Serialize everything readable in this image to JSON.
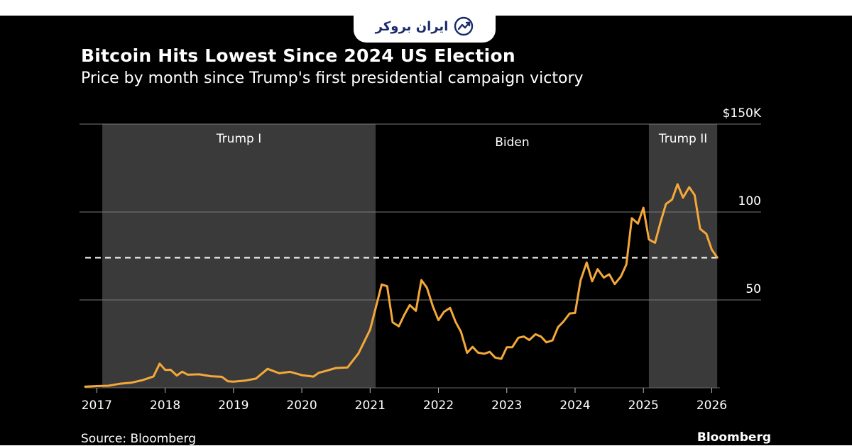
{
  "logo": {
    "text": "ایران بروکر",
    "icon": "chart-trend-icon"
  },
  "chart_data": {
    "type": "line",
    "title": "Bitcoin Hits Lowest Since 2024 US Election",
    "subtitle": "Price by month since Trump's first presidential campaign victory",
    "source": "Source: Bloomberg",
    "brand": "Bloomberg",
    "y_unit_prefix": "$",
    "y_unit_suffix": "K",
    "ylim": [
      0,
      150
    ],
    "xlim": [
      2016.83,
      2026.12
    ],
    "y_ticks": [
      {
        "value": 50,
        "label": "50"
      },
      {
        "value": 100,
        "label": "100"
      },
      {
        "value": 150,
        "label": "$150K"
      }
    ],
    "x_ticks": [
      {
        "value": 2017,
        "label": "2017"
      },
      {
        "value": 2018,
        "label": "2018"
      },
      {
        "value": 2019,
        "label": "2019"
      },
      {
        "value": 2020,
        "label": "2020"
      },
      {
        "value": 2021,
        "label": "2021"
      },
      {
        "value": 2022,
        "label": "2022"
      },
      {
        "value": 2023,
        "label": "2023"
      },
      {
        "value": 2024,
        "label": "2024"
      },
      {
        "value": 2025,
        "label": "2025"
      },
      {
        "value": 2026,
        "label": "2026"
      }
    ],
    "reference_line": {
      "value": 74,
      "style": "dashed"
    },
    "periods": [
      {
        "label": "Trump I",
        "start": 2017.08,
        "end": 2021.08,
        "shaded": true
      },
      {
        "label": "Biden",
        "start": 2021.08,
        "end": 2025.08,
        "shaded": false
      },
      {
        "label": "Trump II",
        "start": 2025.08,
        "end": 2026.08,
        "shaded": true
      }
    ],
    "colors": {
      "line": "#f5a83a",
      "shade": "#3a3a3a",
      "grid": "#7a7a7a",
      "dash": "#ffffff"
    },
    "series": [
      {
        "name": "Bitcoin price ($K)",
        "x": [
          2016.83,
          2017.0,
          2017.17,
          2017.33,
          2017.5,
          2017.67,
          2017.83,
          2017.92,
          2018.0,
          2018.08,
          2018.17,
          2018.25,
          2018.33,
          2018.5,
          2018.67,
          2018.83,
          2018.92,
          2019.0,
          2019.17,
          2019.33,
          2019.5,
          2019.67,
          2019.83,
          2020.0,
          2020.17,
          2020.25,
          2020.33,
          2020.5,
          2020.67,
          2020.83,
          2021.0,
          2021.08,
          2021.17,
          2021.25,
          2021.33,
          2021.42,
          2021.5,
          2021.58,
          2021.67,
          2021.75,
          2021.83,
          2021.92,
          2022.0,
          2022.08,
          2022.17,
          2022.25,
          2022.33,
          2022.42,
          2022.5,
          2022.58,
          2022.67,
          2022.75,
          2022.83,
          2022.92,
          2023.0,
          2023.08,
          2023.17,
          2023.25,
          2023.33,
          2023.42,
          2023.5,
          2023.58,
          2023.67,
          2023.75,
          2023.83,
          2023.92,
          2024.0,
          2024.08,
          2024.17,
          2024.25,
          2024.33,
          2024.42,
          2024.5,
          2024.58,
          2024.67,
          2024.75,
          2024.83,
          2024.92,
          2025.0,
          2025.08,
          2025.17,
          2025.25,
          2025.33,
          2025.42,
          2025.5,
          2025.58,
          2025.67,
          2025.75,
          2025.83,
          2025.92,
          2026.0,
          2026.08
        ],
        "values": [
          0.7,
          1.0,
          1.2,
          2.3,
          2.9,
          4.4,
          6.5,
          13.8,
          10.2,
          10.3,
          7.0,
          9.2,
          7.5,
          7.7,
          6.6,
          6.3,
          3.7,
          3.5,
          4.1,
          5.3,
          10.8,
          8.3,
          9.1,
          7.2,
          6.4,
          8.6,
          9.4,
          11.3,
          11.6,
          19.6,
          33.1,
          45.2,
          58.8,
          57.8,
          37.3,
          35.0,
          41.5,
          47.1,
          43.8,
          61.3,
          57.0,
          46.2,
          38.5,
          43.2,
          45.5,
          37.6,
          31.8,
          19.9,
          23.3,
          20.0,
          19.4,
          20.5,
          17.2,
          16.5,
          23.1,
          23.1,
          28.5,
          29.2,
          27.2,
          30.5,
          29.2,
          25.9,
          27.0,
          34.5,
          37.7,
          42.3,
          42.6,
          61.1,
          71.3,
          60.6,
          67.5,
          62.7,
          64.6,
          59.0,
          63.3,
          70.2,
          96.5,
          93.4,
          102.4,
          84.4,
          82.5,
          94.2,
          104.6,
          107.1,
          115.8,
          108.2,
          114.1,
          109.6,
          90.4,
          87.6,
          78.6,
          74.1
        ]
      }
    ]
  }
}
